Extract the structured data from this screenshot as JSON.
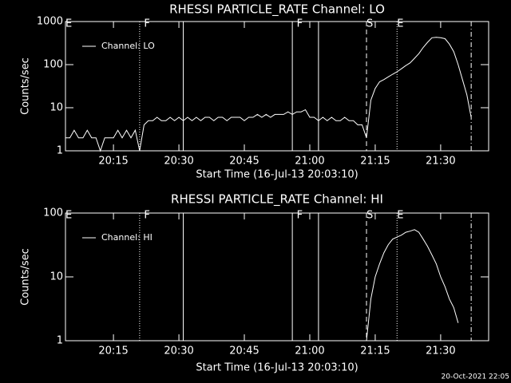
{
  "chart_data": [
    {
      "type": "line",
      "title": "RHESSI PARTICLE_RATE Channel: LO",
      "xlabel": "Start Time (16-Jul-13 20:03:10)",
      "ylabel": "Counts/sec",
      "x": [
        "20:04",
        "20:05",
        "20:06",
        "20:07",
        "20:08",
        "20:09",
        "20:10",
        "20:11",
        "20:12",
        "20:13",
        "20:14",
        "20:15",
        "20:16",
        "20:17",
        "20:18",
        "20:19",
        "20:20",
        "20:21",
        "20:22",
        "20:23",
        "20:24",
        "20:25",
        "20:26",
        "20:27",
        "20:28",
        "20:29",
        "20:30",
        "20:31",
        "20:32",
        "20:33",
        "20:34",
        "20:35",
        "20:36",
        "20:37",
        "20:38",
        "20:39",
        "20:40",
        "20:41",
        "20:42",
        "20:43",
        "20:44",
        "20:45",
        "20:46",
        "20:47",
        "20:48",
        "20:49",
        "20:50",
        "20:51",
        "20:52",
        "20:53",
        "20:54",
        "20:55",
        "20:56",
        "20:57",
        "20:58",
        "20:59",
        "21:00",
        "21:01",
        "21:02",
        "21:03",
        "21:04",
        "21:05",
        "21:06",
        "21:07",
        "21:08",
        "21:09",
        "21:10",
        "21:11",
        "21:12",
        "21:13",
        "21:14",
        "21:15",
        "21:16",
        "21:17",
        "21:18",
        "21:19",
        "21:20",
        "21:21",
        "21:22",
        "21:23",
        "21:24",
        "21:25",
        "21:26",
        "21:27",
        "21:28",
        "21:29",
        "21:30",
        "21:31",
        "21:32",
        "21:33",
        "21:34",
        "21:35",
        "21:36",
        "21:37"
      ],
      "series": [
        {
          "name": "Channel: LO",
          "color": "#ffffff",
          "values": [
            2,
            2,
            3,
            2,
            2,
            3,
            2,
            2,
            1,
            2,
            2,
            2,
            3,
            2,
            3,
            2,
            3,
            1,
            4,
            5,
            5,
            6,
            5,
            5,
            6,
            5,
            6,
            5,
            6,
            5,
            6,
            5,
            6,
            6,
            5,
            6,
            6,
            5,
            6,
            6,
            6,
            5,
            6,
            6,
            7,
            6,
            7,
            6,
            7,
            7,
            7,
            8,
            7,
            8,
            8,
            9,
            6,
            6,
            5,
            6,
            5,
            6,
            5,
            5,
            6,
            5,
            5,
            4,
            4,
            2,
            15,
            28,
            40,
            45,
            52,
            60,
            68,
            80,
            95,
            110,
            140,
            180,
            250,
            330,
            420,
            430,
            420,
            400,
            300,
            200,
            100,
            45,
            20,
            6
          ]
        }
      ],
      "xlim": [
        "20:04",
        "21:41"
      ],
      "xticks": [
        "20:15",
        "20:30",
        "20:45",
        "21:00",
        "21:15",
        "21:30"
      ],
      "ylim": [
        1,
        1000
      ],
      "yticks": [
        1,
        10,
        100,
        1000
      ],
      "log_y": true,
      "legend": "upper left",
      "flags": [
        {
          "x": "20:21",
          "style": "dotted"
        },
        {
          "x": "20:31",
          "style": "solid"
        },
        {
          "x": "20:56",
          "style": "solid"
        },
        {
          "x": "21:02",
          "style": "solid"
        },
        {
          "x": "21:13",
          "style": "dashed"
        },
        {
          "x": "21:20",
          "style": "dotted"
        },
        {
          "x": "21:37",
          "style": "dash-dot"
        }
      ],
      "flag_labels": [
        {
          "x": "20:04",
          "text": "E"
        },
        {
          "x": "20:22",
          "text": "F"
        },
        {
          "x": "20:57",
          "text": "F"
        },
        {
          "x": "21:13",
          "text": "S"
        },
        {
          "x": "21:20",
          "text": "E"
        }
      ]
    },
    {
      "type": "line",
      "title": "RHESSI PARTICLE_RATE Channel: HI",
      "xlabel": "Start Time (16-Jul-13 20:03:10)",
      "ylabel": "Counts/sec",
      "x": [
        "21:13",
        "21:14",
        "21:15",
        "21:16",
        "21:17",
        "21:18",
        "21:19",
        "21:20",
        "21:21",
        "21:22",
        "21:23",
        "21:24",
        "21:25",
        "21:26",
        "21:27",
        "21:28",
        "21:29",
        "21:30",
        "21:31",
        "21:32",
        "21:33",
        "21:34"
      ],
      "series": [
        {
          "name": "Channel: HI",
          "color": "#ffffff",
          "values": [
            1,
            4.5,
            10,
            16,
            24,
            32,
            39,
            42,
            45,
            50,
            52,
            55,
            50,
            39,
            30,
            22,
            16,
            10,
            7,
            4.5,
            3.3,
            1.9
          ]
        }
      ],
      "xlim": [
        "20:04",
        "21:41"
      ],
      "xticks": [
        "20:15",
        "20:30",
        "20:45",
        "21:00",
        "21:15",
        "21:30"
      ],
      "ylim": [
        1,
        100
      ],
      "yticks": [
        1,
        10,
        100
      ],
      "log_y": true,
      "legend": "upper left",
      "flags": [
        {
          "x": "20:21",
          "style": "dotted"
        },
        {
          "x": "20:31",
          "style": "solid"
        },
        {
          "x": "20:56",
          "style": "solid"
        },
        {
          "x": "21:02",
          "style": "solid"
        },
        {
          "x": "21:13",
          "style": "dashed"
        },
        {
          "x": "21:20",
          "style": "dotted"
        },
        {
          "x": "21:37",
          "style": "dash-dot"
        }
      ],
      "flag_labels": [
        {
          "x": "20:04",
          "text": "E"
        },
        {
          "x": "20:22",
          "text": "F"
        },
        {
          "x": "20:57",
          "text": "F"
        },
        {
          "x": "21:13",
          "text": "S"
        },
        {
          "x": "21:20",
          "text": "E"
        }
      ]
    }
  ],
  "timestamp": "20-Oct-2021 22:05"
}
